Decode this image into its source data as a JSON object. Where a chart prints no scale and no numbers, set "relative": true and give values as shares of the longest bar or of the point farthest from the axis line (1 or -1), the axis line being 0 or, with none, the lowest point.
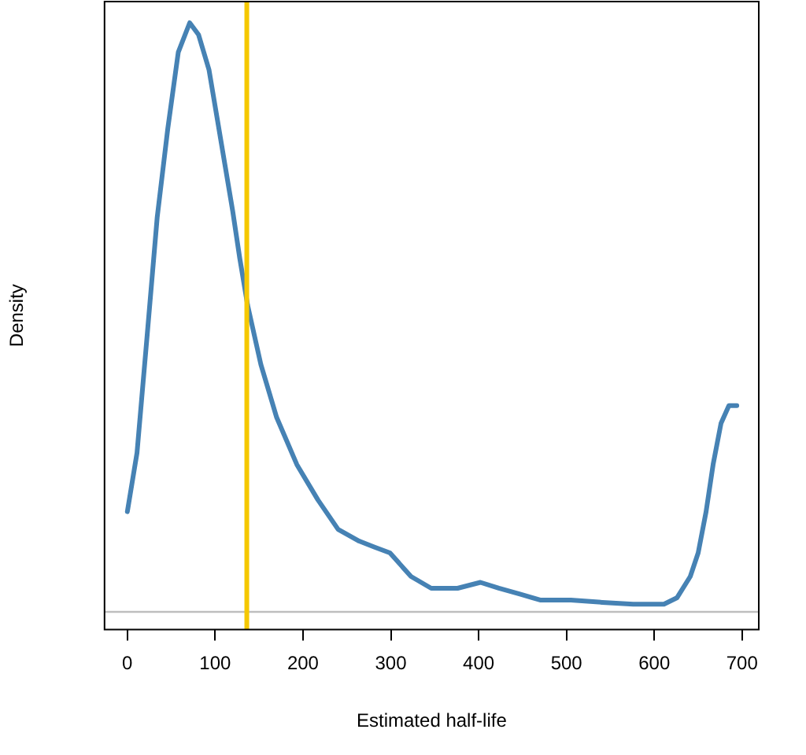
{
  "chart_data": {
    "type": "line",
    "xlabel": "Estimated half-life",
    "ylabel": "Density",
    "relative": true,
    "xlim": [
      -26,
      719
    ],
    "xticks": [
      0,
      100,
      200,
      300,
      400,
      500,
      600,
      700
    ],
    "grid": false,
    "legend": false,
    "marker": "none",
    "line_style": "solid",
    "series": [
      {
        "color": "#4682b4",
        "x": [
          0,
          11,
          22,
          34,
          46,
          58,
          71,
          81,
          93,
          102,
          111,
          120,
          128,
          137,
          152,
          170,
          193,
          217,
          240,
          264,
          281,
          299,
          323,
          346,
          376,
          402,
          423,
          447,
          470,
          505,
          541,
          576,
          611,
          626,
          641,
          650,
          659,
          667,
          676,
          685,
          694
        ],
        "values": [
          0.17,
          0.27,
          0.46,
          0.67,
          0.82,
          0.95,
          1,
          0.98,
          0.92,
          0.84,
          0.76,
          0.68,
          0.6,
          0.52,
          0.42,
          0.33,
          0.25,
          0.19,
          0.14,
          0.12,
          0.11,
          0.1,
          0.06,
          0.04,
          0.04,
          0.05,
          0.04,
          0.03,
          0.02,
          0.02,
          0.016,
          0.013,
          0.013,
          0.024,
          0.06,
          0.1,
          0.17,
          0.25,
          0.32,
          0.35,
          0.35
        ]
      }
    ],
    "ref_lines": [
      {
        "axis": "x",
        "value": 136,
        "color": "#f5c800",
        "line_style": "solid"
      }
    ]
  }
}
